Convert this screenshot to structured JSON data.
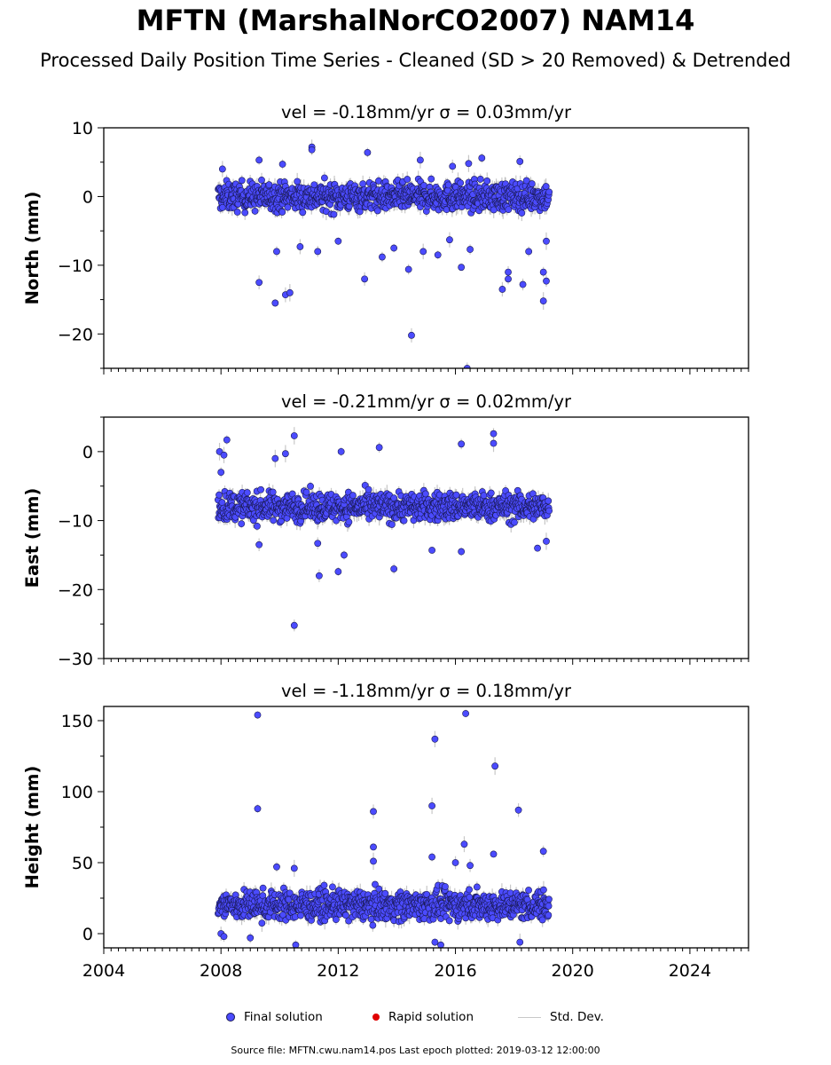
{
  "page": {
    "title": "MFTN (MarshalNorCO2007) NAM14",
    "subtitle": "Processed Daily Position Time Series - Cleaned (SD > 20 Removed) & Detrended",
    "source": "Source file: MFTN.cwu.nam14.pos  Last epoch plotted: 2019-03-12 12:00:00"
  },
  "legend": {
    "final": "Final solution",
    "rapid": "Rapid solution",
    "std": "Std. Dev."
  },
  "colors": {
    "final": "#4b4bff",
    "final_edge": "#1a1a55",
    "rapid": "#e00000",
    "std": "#b4b4b4"
  },
  "chart_data": [
    {
      "type": "scatter",
      "title": "vel = -0.18mm/yr   σ = 0.03mm/yr",
      "ylabel": "North (mm)",
      "xlim": [
        2004,
        2026
      ],
      "ylim": [
        -25,
        10
      ],
      "yticks": [
        -20,
        -10,
        0,
        10
      ],
      "ytick_labels": [
        "−20",
        "−10",
        "0",
        "10"
      ],
      "data_range": [
        2007.9,
        2019.2
      ],
      "band": {
        "center": 0,
        "spread": 1.6
      },
      "outliers": [
        {
          "x": 2008.05,
          "y": 4.0
        },
        {
          "x": 2009.3,
          "y": 5.3
        },
        {
          "x": 2009.3,
          "y": -12.5
        },
        {
          "x": 2009.85,
          "y": -15.5
        },
        {
          "x": 2009.9,
          "y": -8.0
        },
        {
          "x": 2010.2,
          "y": -14.3
        },
        {
          "x": 2010.35,
          "y": -14.0
        },
        {
          "x": 2010.1,
          "y": 4.7
        },
        {
          "x": 2010.7,
          "y": -7.3
        },
        {
          "x": 2011.1,
          "y": 7.2
        },
        {
          "x": 2011.1,
          "y": 6.8
        },
        {
          "x": 2011.3,
          "y": -8.0
        },
        {
          "x": 2012.0,
          "y": -6.5
        },
        {
          "x": 2012.9,
          "y": -12.0
        },
        {
          "x": 2013.0,
          "y": 6.4
        },
        {
          "x": 2013.5,
          "y": -8.8
        },
        {
          "x": 2013.9,
          "y": -7.5
        },
        {
          "x": 2014.4,
          "y": -10.6
        },
        {
          "x": 2014.5,
          "y": -20.2
        },
        {
          "x": 2014.8,
          "y": 5.3
        },
        {
          "x": 2014.9,
          "y": -8.0
        },
        {
          "x": 2015.4,
          "y": -8.5
        },
        {
          "x": 2015.8,
          "y": -6.3
        },
        {
          "x": 2015.9,
          "y": 4.4
        },
        {
          "x": 2016.2,
          "y": -10.3
        },
        {
          "x": 2016.4,
          "y": -25.0
        },
        {
          "x": 2016.45,
          "y": 4.8
        },
        {
          "x": 2016.5,
          "y": -7.7
        },
        {
          "x": 2016.9,
          "y": 5.6
        },
        {
          "x": 2017.6,
          "y": -13.5
        },
        {
          "x": 2017.8,
          "y": -12.0
        },
        {
          "x": 2017.8,
          "y": -11.0
        },
        {
          "x": 2018.3,
          "y": -12.8
        },
        {
          "x": 2018.2,
          "y": 5.1
        },
        {
          "x": 2018.5,
          "y": -8.0
        },
        {
          "x": 2019.0,
          "y": -11.0
        },
        {
          "x": 2019.0,
          "y": -15.2
        },
        {
          "x": 2019.1,
          "y": -12.3
        },
        {
          "x": 2019.1,
          "y": -6.5
        }
      ]
    },
    {
      "type": "scatter",
      "title": "vel = -0.21mm/yr   σ = 0.02mm/yr",
      "ylabel": "East (mm)",
      "xlim": [
        2004,
        2026
      ],
      "ylim": [
        -30,
        5
      ],
      "yticks": [
        -30,
        -20,
        -10,
        0
      ],
      "ytick_labels": [
        "−30",
        "−20",
        "−10",
        "0"
      ],
      "data_range": [
        2007.9,
        2019.2
      ],
      "band": {
        "center": -8.0,
        "spread": 1.6
      },
      "outliers": [
        {
          "x": 2007.95,
          "y": 0.0
        },
        {
          "x": 2008.1,
          "y": -0.5
        },
        {
          "x": 2008.2,
          "y": 1.7
        },
        {
          "x": 2008.0,
          "y": -3.0
        },
        {
          "x": 2009.3,
          "y": -13.5
        },
        {
          "x": 2009.85,
          "y": -1.0
        },
        {
          "x": 2010.2,
          "y": -0.3
        },
        {
          "x": 2010.5,
          "y": 2.3
        },
        {
          "x": 2010.5,
          "y": -25.2
        },
        {
          "x": 2011.3,
          "y": -13.3
        },
        {
          "x": 2011.35,
          "y": -18.0
        },
        {
          "x": 2012.0,
          "y": -17.4
        },
        {
          "x": 2012.1,
          "y": 0.0
        },
        {
          "x": 2012.2,
          "y": -15.0
        },
        {
          "x": 2013.4,
          "y": 0.6
        },
        {
          "x": 2013.9,
          "y": -17.0
        },
        {
          "x": 2015.2,
          "y": -14.3
        },
        {
          "x": 2016.2,
          "y": 1.1
        },
        {
          "x": 2016.2,
          "y": -14.5
        },
        {
          "x": 2017.3,
          "y": 2.6
        },
        {
          "x": 2017.3,
          "y": 1.2
        },
        {
          "x": 2018.8,
          "y": -14.0
        },
        {
          "x": 2019.1,
          "y": -13.0
        }
      ]
    },
    {
      "type": "scatter",
      "title": "vel = -1.18mm/yr   σ = 0.18mm/yr",
      "ylabel": "Height (mm)",
      "xlim": [
        2004,
        2026
      ],
      "ylim": [
        -10,
        160
      ],
      "yticks": [
        0,
        50,
        100,
        150
      ],
      "ytick_labels": [
        "0",
        "50",
        "100",
        "150"
      ],
      "xticks": [
        2004,
        2008,
        2012,
        2016,
        2020,
        2024
      ],
      "xtick_labels": [
        "2004",
        "2008",
        "2012",
        "2016",
        "2020",
        "2024"
      ],
      "data_range": [
        2007.9,
        2019.2
      ],
      "band": {
        "center": 20,
        "spread": 8
      },
      "outliers": [
        {
          "x": 2009.25,
          "y": 154
        },
        {
          "x": 2009.25,
          "y": 88
        },
        {
          "x": 2013.2,
          "y": 86
        },
        {
          "x": 2015.2,
          "y": 90
        },
        {
          "x": 2015.3,
          "y": 137
        },
        {
          "x": 2016.35,
          "y": 155
        },
        {
          "x": 2017.35,
          "y": 118
        },
        {
          "x": 2018.15,
          "y": 87
        },
        {
          "x": 2019.0,
          "y": 58
        },
        {
          "x": 2016.3,
          "y": 63
        },
        {
          "x": 2013.2,
          "y": 61
        },
        {
          "x": 2017.3,
          "y": 56
        },
        {
          "x": 2009.9,
          "y": 47
        },
        {
          "x": 2010.5,
          "y": 46
        },
        {
          "x": 2013.2,
          "y": 51
        },
        {
          "x": 2015.2,
          "y": 54
        },
        {
          "x": 2016.5,
          "y": 48
        },
        {
          "x": 2008.0,
          "y": 0
        },
        {
          "x": 2008.1,
          "y": -2
        },
        {
          "x": 2009.0,
          "y": -3
        },
        {
          "x": 2010.55,
          "y": -8
        },
        {
          "x": 2015.3,
          "y": -6
        },
        {
          "x": 2015.5,
          "y": -8
        },
        {
          "x": 2018.2,
          "y": -6
        },
        {
          "x": 2016.0,
          "y": 50
        }
      ]
    }
  ]
}
